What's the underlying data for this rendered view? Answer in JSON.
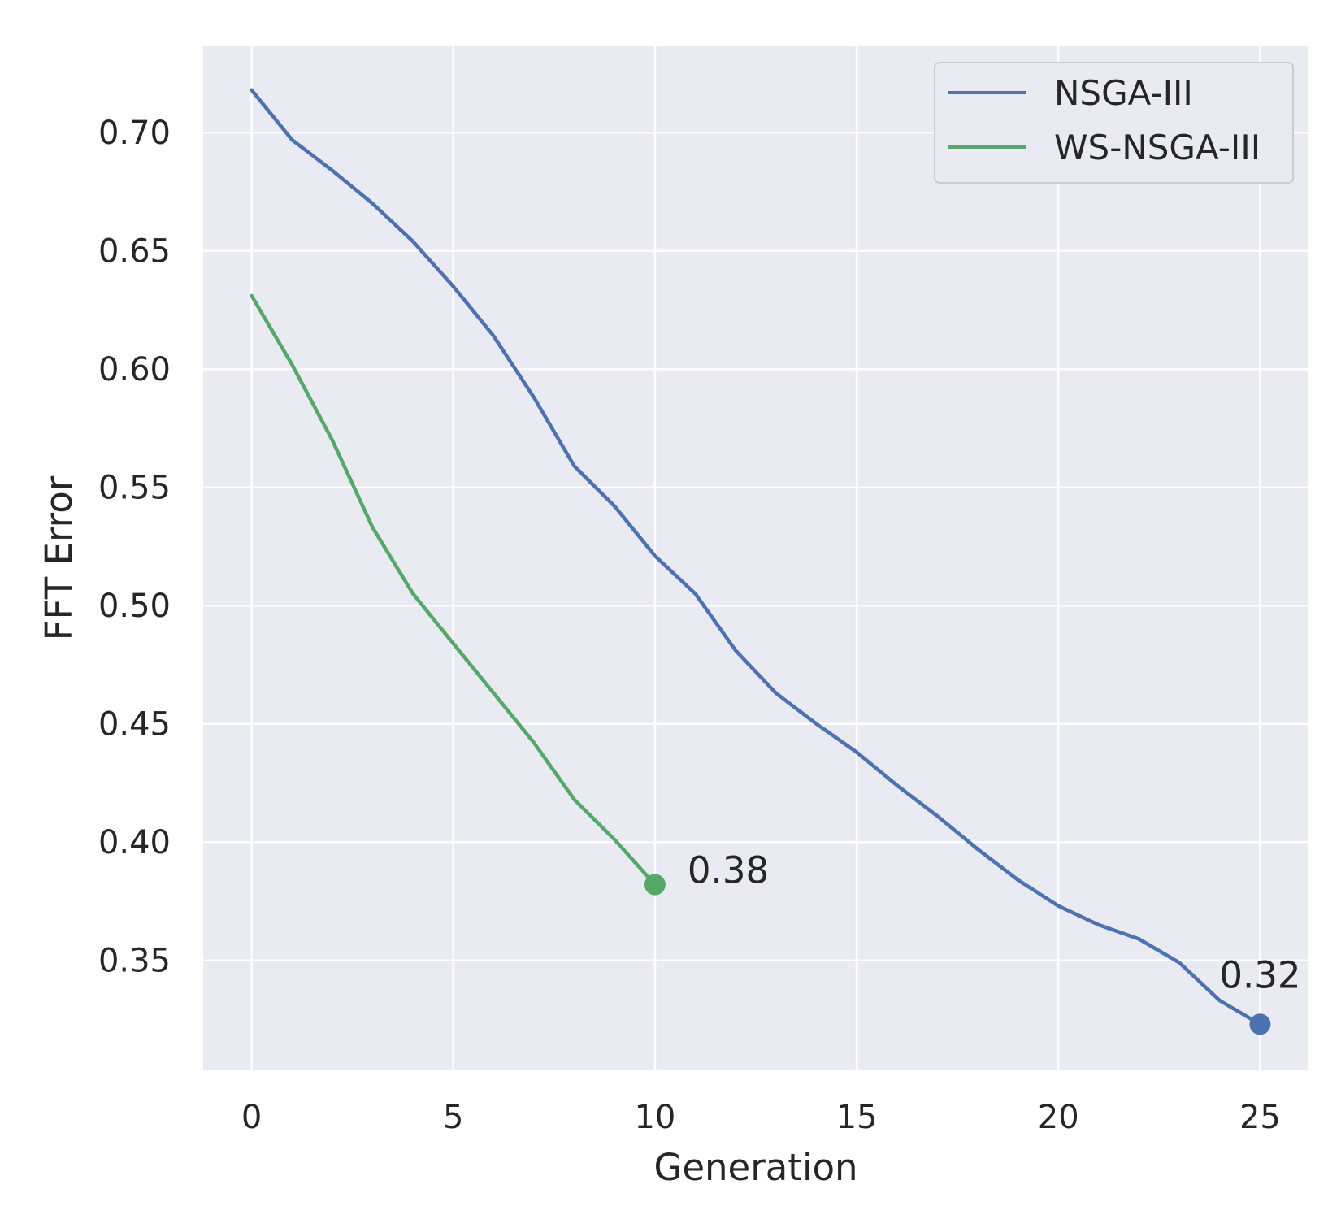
{
  "chart_data": {
    "type": "line",
    "xlabel": "Generation",
    "ylabel": "FFT Error",
    "xlim": [
      -1.2,
      26.2
    ],
    "ylim": [
      0.3035,
      0.7365
    ],
    "x_ticks": [
      0,
      5,
      10,
      15,
      20,
      25
    ],
    "y_ticks": [
      0.35,
      0.4,
      0.45,
      0.5,
      0.55,
      0.6,
      0.65,
      0.7
    ],
    "x_tick_labels": [
      "0",
      "5",
      "10",
      "15",
      "20",
      "25"
    ],
    "y_tick_labels": [
      "0.35",
      "0.40",
      "0.45",
      "0.50",
      "0.55",
      "0.60",
      "0.65",
      "0.70"
    ],
    "grid": true,
    "legend_position": "top-right",
    "series": [
      {
        "name": "NSGA-III",
        "color": "#4c72b0",
        "x": [
          0,
          1,
          2,
          3,
          4,
          5,
          6,
          7,
          8,
          9,
          10,
          11,
          12,
          13,
          14,
          15,
          16,
          17,
          18,
          19,
          20,
          21,
          22,
          23,
          24,
          25
        ],
        "y": [
          0.718,
          0.697,
          0.684,
          0.67,
          0.654,
          0.635,
          0.614,
          0.588,
          0.559,
          0.542,
          0.521,
          0.505,
          0.481,
          0.463,
          0.45,
          0.438,
          0.424,
          0.411,
          0.397,
          0.384,
          0.373,
          0.365,
          0.359,
          0.349,
          0.333,
          0.323
        ],
        "end_marker": true,
        "end_label": "0.32",
        "end_label_anchor": "above"
      },
      {
        "name": "WS-NSGA-III",
        "color": "#55a868",
        "x": [
          0,
          1,
          2,
          3,
          4,
          5,
          6,
          7,
          8,
          9,
          10
        ],
        "y": [
          0.631,
          0.602,
          0.57,
          0.533,
          0.505,
          0.484,
          0.463,
          0.442,
          0.418,
          0.401,
          0.382
        ],
        "end_marker": true,
        "end_label": "0.38",
        "end_label_anchor": "right"
      }
    ]
  },
  "colors": {
    "plot_background": "#eaeaf2",
    "grid": "#ffffff",
    "text": "#262626"
  }
}
